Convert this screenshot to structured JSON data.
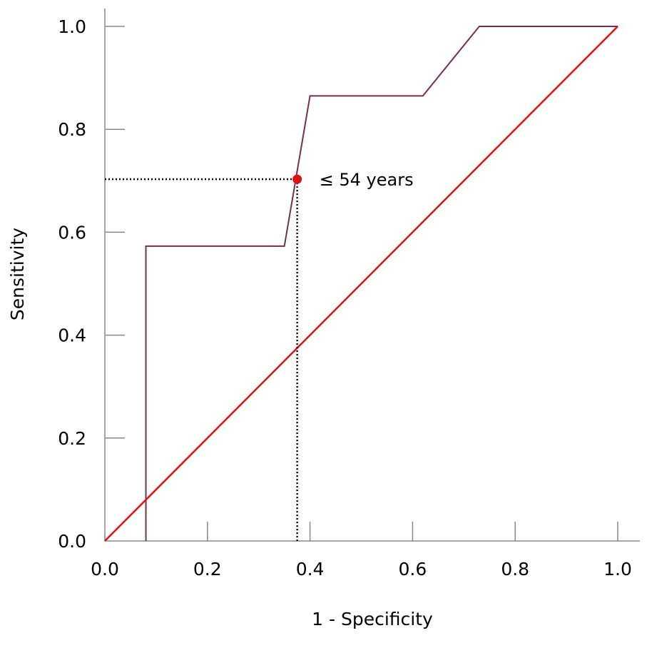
{
  "chart_data": {
    "type": "line",
    "title": "",
    "xlabel": "1 - Specificity",
    "ylabel": "Sensitivity",
    "xlim": [
      0,
      1
    ],
    "ylim": [
      0,
      1
    ],
    "x_ticks": [
      "0.0",
      "0.2",
      "0.4",
      "0.6",
      "0.8",
      "1.0"
    ],
    "y_ticks": [
      "0.0",
      "0.2",
      "0.4",
      "0.6",
      "0.8",
      "1.0"
    ],
    "grid": false,
    "series": [
      {
        "role": "roc-curve",
        "color": "#7b2d4f",
        "points": [
          [
            0.08,
            0.0
          ],
          [
            0.08,
            0.573
          ],
          [
            0.35,
            0.573
          ],
          [
            0.4,
            0.865
          ],
          [
            0.62,
            0.865
          ],
          [
            0.73,
            1.0
          ],
          [
            1.0,
            1.0
          ]
        ]
      },
      {
        "role": "reference-diagonal",
        "color": "#dd1111",
        "points": [
          [
            0.0,
            0.0
          ],
          [
            1.0,
            1.0
          ]
        ]
      }
    ],
    "cutoff": {
      "label": "≤ 54 years",
      "x": 0.375,
      "y": 0.703,
      "color": "#dd1111"
    }
  }
}
